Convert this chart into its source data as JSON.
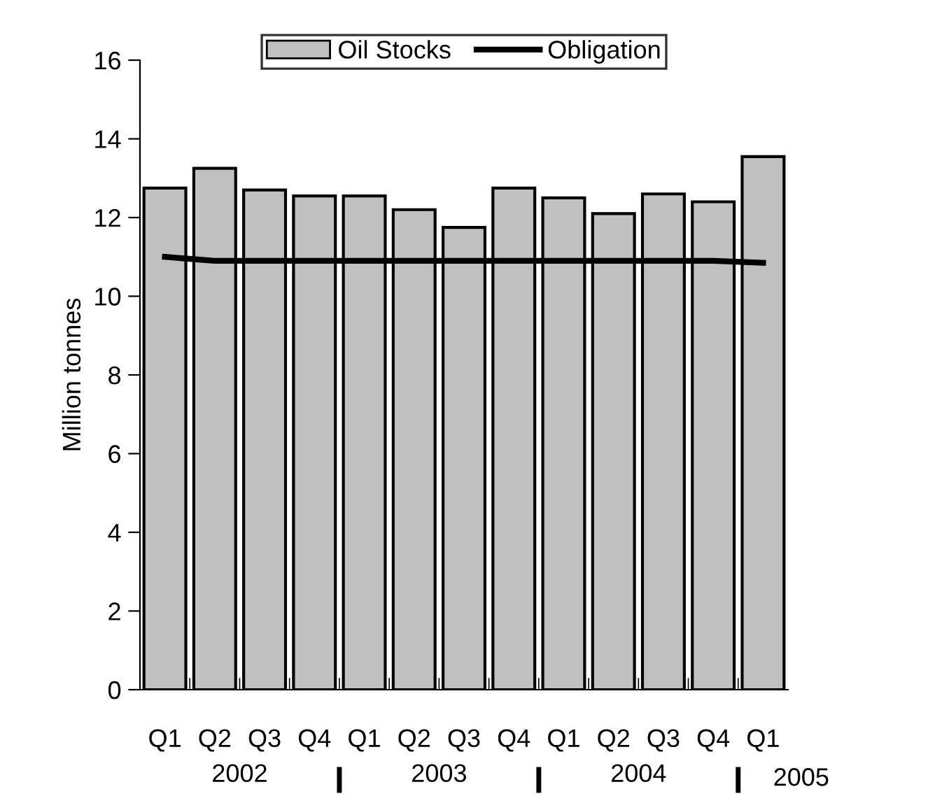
{
  "chart_data": {
    "type": "bar",
    "ylabel": "Million tonnes",
    "categories": [
      "Q1",
      "Q2",
      "Q3",
      "Q4",
      "Q1",
      "Q2",
      "Q3",
      "Q4",
      "Q1",
      "Q2",
      "Q3",
      "Q4",
      "Q1"
    ],
    "series": [
      {
        "name": "Oil Stocks",
        "color": "#c0c0c0",
        "values": [
          12.75,
          13.25,
          12.7,
          12.55,
          12.55,
          12.2,
          11.75,
          12.75,
          12.5,
          12.1,
          12.6,
          12.4,
          13.55
        ]
      },
      {
        "name": "Obligation",
        "type": "line",
        "color": "#000000",
        "values": [
          11.0,
          10.9,
          10.9,
          10.9,
          10.9,
          10.9,
          10.9,
          10.9,
          10.9,
          10.9,
          10.9,
          10.9,
          10.85
        ]
      }
    ],
    "annotations": [
      "2002",
      "2003",
      "2004",
      "2005"
    ],
    "ylim": [
      0,
      16
    ],
    "yticks": [
      0,
      2,
      4,
      6,
      8,
      10,
      12,
      14,
      16
    ],
    "grid": false,
    "legend": "top",
    "marker": "none"
  }
}
